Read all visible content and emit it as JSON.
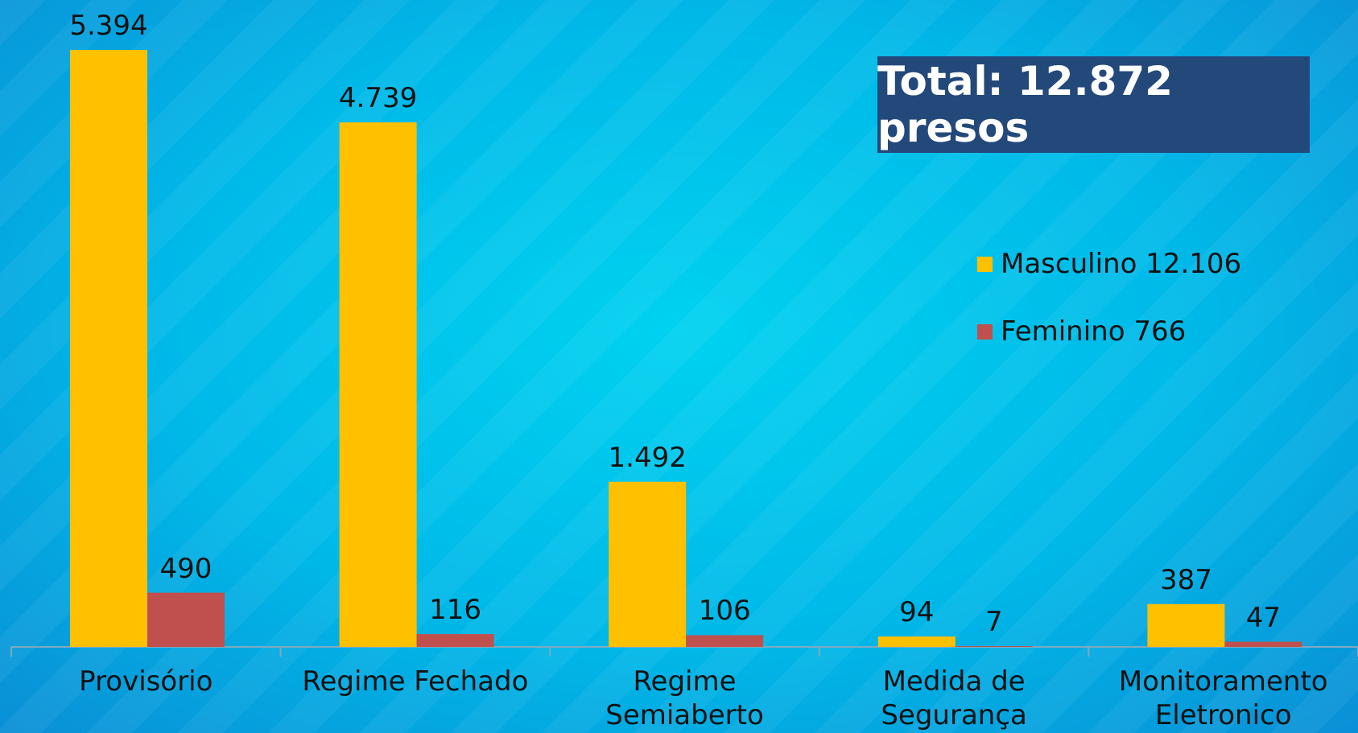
{
  "chart_data": {
    "type": "bar",
    "annotation": "Total: 12.872 presos",
    "categories": [
      "Provisório",
      "Regime Fechado",
      "Regime Semiaberto",
      "Medida de Segurança",
      "Monitoramento Eletronico"
    ],
    "series": [
      {
        "name": "Masculino 12.106",
        "color": "#ffc000",
        "values": [
          5394,
          4739,
          1492,
          94,
          387
        ],
        "value_labels": [
          "5.394",
          "4.739",
          "1.492",
          "94",
          "387"
        ]
      },
      {
        "name": "Feminino 766",
        "color": "#c0504d",
        "values": [
          490,
          116,
          106,
          7,
          47
        ],
        "value_labels": [
          "490",
          "116",
          "106",
          "7",
          "47"
        ]
      }
    ],
    "legend": "right"
  }
}
